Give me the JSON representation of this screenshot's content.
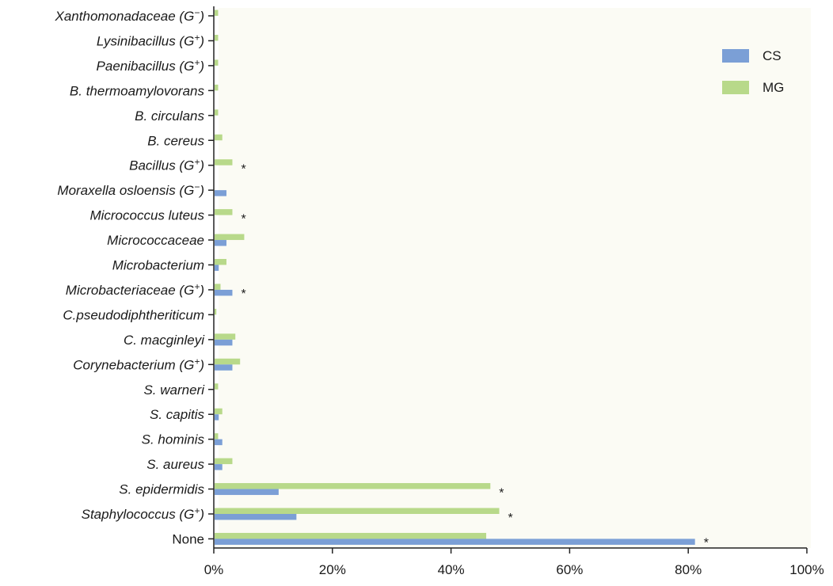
{
  "chart_data": {
    "type": "bar",
    "orientation": "horizontal",
    "categories": [
      "Xanthomonadaceae (G−)",
      "Lysinibacillus (G+)",
      "Paenibacillus (G+)",
      "B. thermoamylovorans",
      "B. circulans",
      "B. cereus",
      "Bacillus (G+)",
      "Moraxella osloensis (G−)",
      "Micrococcus luteus",
      "Micrococcaceae",
      "Microbacterium",
      "Microbacteriaceae (G+)",
      "C.pseudodiphtheriticum",
      "C. macginleyi",
      "Corynebacterium (G+)",
      "S. warneri",
      "S. capitis",
      "S. hominis",
      "S. aureus",
      "S. epidermidis",
      "Staphylococcus (G+)",
      "None"
    ],
    "series": [
      {
        "name": "CS",
        "color": "#7b9fd6",
        "values": [
          0,
          0,
          0,
          0,
          0,
          0,
          0,
          2,
          0,
          2,
          0.7,
          3,
          0,
          3,
          3,
          0,
          0.7,
          1.3,
          1.3,
          10.8,
          13.8,
          81
        ]
      },
      {
        "name": "MG",
        "color": "#b8d98a",
        "values": [
          0.6,
          0.6,
          0.6,
          0.6,
          0.6,
          1.3,
          3,
          0,
          3,
          5,
          2,
          1,
          0.3,
          3.5,
          4.3,
          0.6,
          1.3,
          0.6,
          3,
          46.5,
          48,
          45.8
        ]
      }
    ],
    "significant_markers": [
      {
        "category": "Bacillus (G+)",
        "label": "*"
      },
      {
        "category": "Micrococcus luteus",
        "label": "*"
      },
      {
        "category": "Microbacteriaceae (G+)",
        "label": "*"
      },
      {
        "category": "S. epidermidis",
        "label": "*"
      },
      {
        "category": "Staphylococcus (G+)",
        "label": "*"
      },
      {
        "category": "None",
        "label": "*"
      }
    ],
    "xaxis": {
      "ticks": [
        0,
        20,
        40,
        60,
        80,
        100
      ],
      "tick_labels": [
        "0%",
        "20%",
        "40%",
        "60%",
        "80%",
        "100%"
      ],
      "range": [
        0,
        100
      ]
    },
    "title": "",
    "xlabel": "",
    "ylabel": "",
    "legend": {
      "position": "top-right"
    },
    "grid": false
  }
}
